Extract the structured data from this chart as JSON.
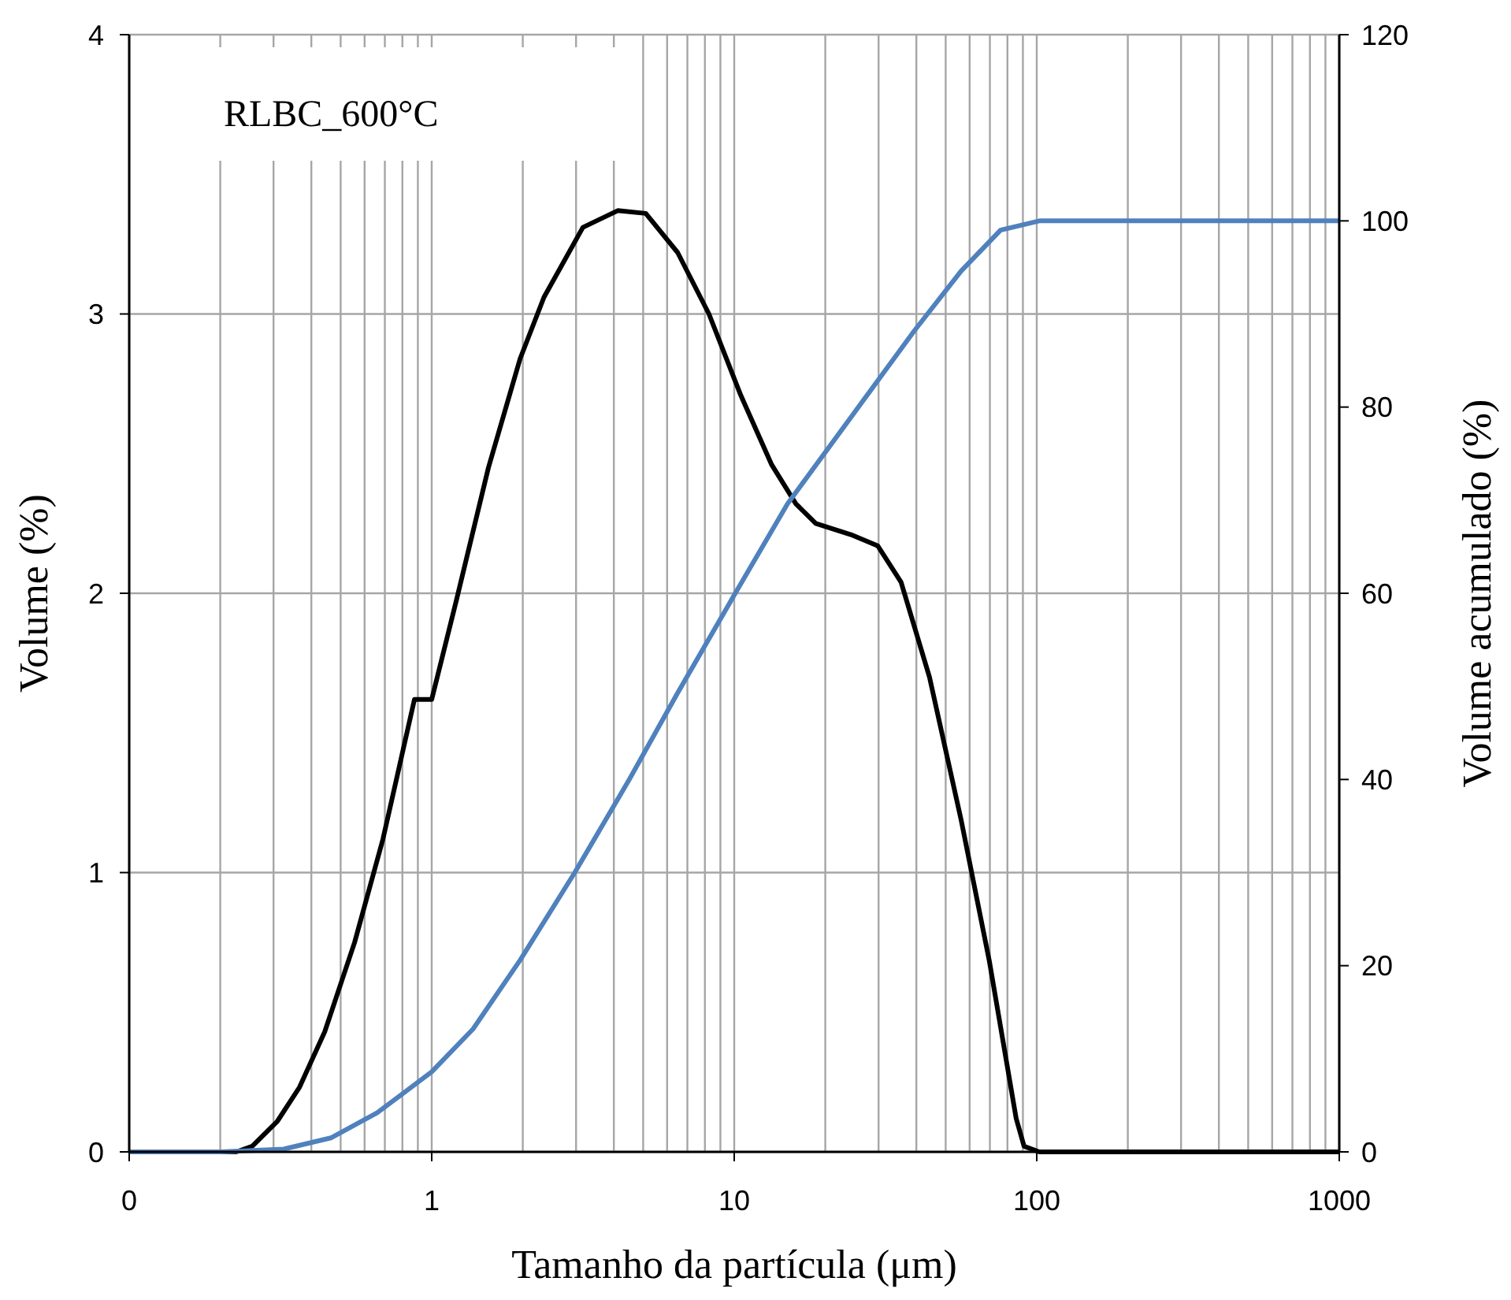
{
  "chart_data": {
    "type": "line",
    "xlabel": "Tamanho da partícula (μm)",
    "ylabel": "Volume (%)",
    "y2label": "Volume acumulado (%)",
    "log": "x",
    "grid": true,
    "marker": "none",
    "line_style": "solid",
    "annotations": [
      "RLBC_600°C"
    ],
    "xlim": [
      0.1,
      1000
    ],
    "xticks": [
      {
        "value": 0.1,
        "label": "0"
      },
      {
        "value": 0.2,
        "label": null
      },
      {
        "value": 0.3,
        "label": null
      },
      {
        "value": 0.4,
        "label": null
      },
      {
        "value": 0.5,
        "label": null
      },
      {
        "value": 0.6,
        "label": null
      },
      {
        "value": 0.7,
        "label": null
      },
      {
        "value": 0.8,
        "label": null
      },
      {
        "value": 0.9,
        "label": null
      },
      1,
      {
        "value": 2,
        "label": null
      },
      {
        "value": 3,
        "label": null
      },
      {
        "value": 4,
        "label": null
      },
      {
        "value": 5,
        "label": null
      },
      {
        "value": 6,
        "label": null
      },
      {
        "value": 7,
        "label": null
      },
      {
        "value": 8,
        "label": null
      },
      {
        "value": 9,
        "label": null
      },
      10,
      {
        "value": 20,
        "label": null
      },
      {
        "value": 30,
        "label": null
      },
      {
        "value": 40,
        "label": null
      },
      {
        "value": 50,
        "label": null
      },
      {
        "value": 60,
        "label": null
      },
      {
        "value": 70,
        "label": null
      },
      {
        "value": 80,
        "label": null
      },
      {
        "value": 90,
        "label": null
      },
      100,
      {
        "value": 200,
        "label": null
      },
      {
        "value": 300,
        "label": null
      },
      {
        "value": 400,
        "label": null
      },
      {
        "value": 500,
        "label": null
      },
      {
        "value": 600,
        "label": null
      },
      {
        "value": 700,
        "label": null
      },
      {
        "value": 800,
        "label": null
      },
      {
        "value": 900,
        "label": null
      },
      1000
    ],
    "ylim": [
      0,
      4
    ],
    "yticks": [
      0,
      1,
      2,
      3,
      4
    ],
    "y2lim": [
      0,
      120
    ],
    "y2ticks": [
      0,
      20,
      40,
      60,
      80,
      100,
      120
    ],
    "series": [
      {
        "color": "#000000",
        "x": [
          0.1,
          0.226,
          0.255,
          0.309,
          0.365,
          0.443,
          0.556,
          0.69,
          0.877,
          1.0,
          1.21,
          1.54,
          1.96,
          2.35,
          3.16,
          4.12,
          5.1,
          6.5,
          8.25,
          10.5,
          13.3,
          16,
          18.6,
          24.3,
          29.8,
          35.6,
          44.2,
          56.2,
          69.8,
          85.5,
          90.8,
          102,
          1000
        ],
        "values": [
          0,
          0,
          0.02,
          0.11,
          0.23,
          0.43,
          0.75,
          1.12,
          1.62,
          1.62,
          1.98,
          2.45,
          2.84,
          3.06,
          3.31,
          3.37,
          3.36,
          3.22,
          3.0,
          2.71,
          2.46,
          2.32,
          2.25,
          2.21,
          2.17,
          2.04,
          1.7,
          1.19,
          0.68,
          0.12,
          0.02,
          0,
          0
        ]
      },
      {
        "color": "#4f81bd",
        "axis": "y2",
        "x": [
          0.1,
          0.2,
          0.324,
          0.464,
          0.66,
          1,
          1.37,
          1.96,
          2.97,
          4.5,
          6.5,
          10,
          15,
          24.3,
          39.4,
          56.2,
          75.9,
          102,
          1000
        ],
        "values": [
          0,
          0,
          0.3,
          1.5,
          4.2,
          8.6,
          13.2,
          20.6,
          30,
          40,
          49.3,
          59.8,
          69.6,
          78.9,
          88.2,
          94.6,
          99,
          100,
          100
        ]
      }
    ]
  }
}
